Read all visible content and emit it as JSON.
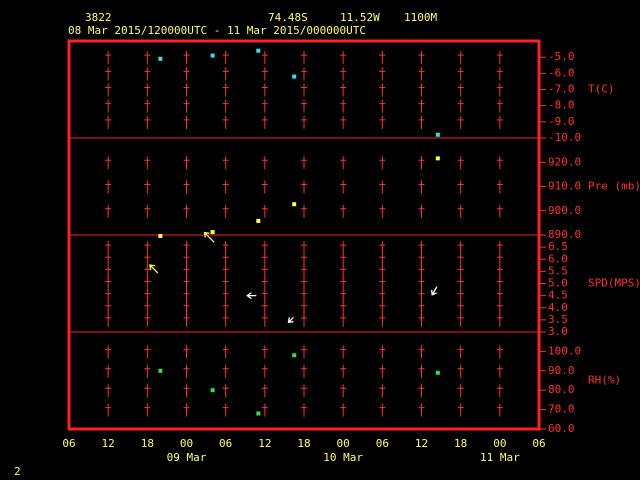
{
  "header": {
    "station": "3822",
    "lat": "74.48S",
    "lon": "11.52W",
    "elevation": "1100M",
    "period": "08 Mar 2015/120000UTC - 11 Mar 2015/000000UTC"
  },
  "page_number": "2",
  "chart_data": [
    {
      "type": "scatter",
      "y_label": "T(C)",
      "color": "#33e0f0",
      "x": [
        14,
        22,
        29,
        34.5,
        56.5
      ],
      "values": [
        -5.1,
        -4.9,
        -4.6,
        -6.2,
        -9.8
      ],
      "ylim": [
        -10,
        -4
      ],
      "yticks": [
        {
          "value": -10,
          "label": "-10.0"
        },
        {
          "value": -9,
          "label": "-9.0"
        },
        {
          "value": -8,
          "label": "-8.0"
        },
        {
          "value": -7,
          "label": "-7.0"
        },
        {
          "value": -6,
          "label": "-6.0"
        },
        {
          "value": -5,
          "label": "-5.0"
        }
      ]
    },
    {
      "type": "scatter",
      "y_label": "Pre (mb)",
      "color": "#ffff40",
      "x": [
        14,
        22,
        29,
        34.5,
        56.5
      ],
      "values": [
        889.6,
        891.2,
        895.8,
        902.7,
        921.6
      ],
      "ylim": [
        890,
        930
      ],
      "yticks": [
        {
          "value": 890,
          "label": "890.0"
        },
        {
          "value": 900,
          "label": "900.0"
        },
        {
          "value": 910,
          "label": "910.0"
        },
        {
          "value": 920,
          "label": "920.0"
        }
      ]
    },
    {
      "type": "quiver",
      "y_label": "SPD(MPS)",
      "x": [
        13,
        21.5,
        28,
        34,
        56
      ],
      "values": [
        5.6,
        6.9,
        4.5,
        3.5,
        4.7
      ],
      "directions": [
        135,
        135,
        90,
        45,
        30
      ],
      "colors": [
        "#ffff40",
        "#ffff40",
        "#ffffff",
        "#ffffff",
        "#ffffff"
      ],
      "ylim": [
        3,
        7
      ],
      "yticks": [
        {
          "value": 3,
          "label": "3.0"
        },
        3.5,
        {
          "value": 4,
          "label": "4.0"
        },
        4.5,
        {
          "value": 5,
          "label": "5.0"
        },
        5.5,
        {
          "value": 6,
          "label": "6.0"
        },
        6.5
      ]
    },
    {
      "type": "scatter",
      "y_label": "RH(%)",
      "color": "#30e040",
      "x": [
        14,
        22,
        29,
        34.5,
        56.5
      ],
      "values": [
        90,
        80,
        68,
        98,
        89
      ],
      "ylim": [
        60,
        110
      ],
      "yticks": [
        {
          "value": 60,
          "label": "60.0"
        },
        {
          "value": 70,
          "label": "70.0"
        },
        {
          "value": 80,
          "label": "80.0"
        },
        {
          "value": 90,
          "label": "90.0"
        },
        {
          "value": 100,
          "label": "100.0"
        }
      ],
      "xlim": [
        0,
        72
      ],
      "xticks": [
        {
          "value": 0,
          "label": "06"
        },
        {
          "value": 6,
          "label": "12"
        },
        {
          "value": 12,
          "label": "18"
        },
        {
          "value": 18,
          "label": "00"
        },
        {
          "value": 24,
          "label": "06"
        },
        {
          "value": 30,
          "label": "12"
        },
        {
          "value": 36,
          "label": "18"
        },
        {
          "value": 42,
          "label": "00"
        },
        {
          "value": 48,
          "label": "06"
        },
        {
          "value": 54,
          "label": "12"
        },
        {
          "value": 60,
          "label": "18"
        },
        {
          "value": 66,
          "label": "00"
        },
        {
          "value": 72,
          "label": "06"
        }
      ],
      "date_labels": [
        {
          "value": 18,
          "label": "09 Mar"
        },
        {
          "value": 42,
          "label": "10 Mar"
        },
        {
          "value": 66,
          "label": "11 Mar"
        }
      ]
    }
  ]
}
